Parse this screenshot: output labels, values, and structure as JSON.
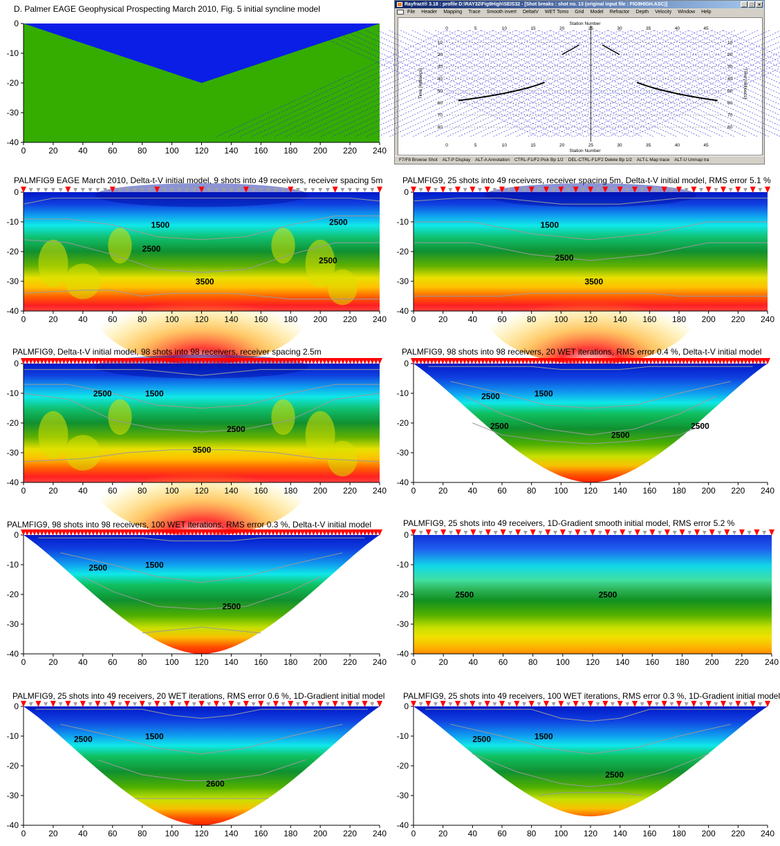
{
  "colors": {
    "water_blue": "#0a1ee6",
    "green_fill": "#34ad00",
    "shot_marker": "#ff0000",
    "receiver_marker": "#a0a0a0",
    "contour": "#9a9a9a",
    "ray_blue": "#2a2ad8"
  },
  "panels": [
    {
      "id": "syncline",
      "title": "D. Palmer EAGE Geophysical Prospecting March 2010, Fig. 5 initial syncline model",
      "kind": "syncline",
      "shots": [],
      "receivers": [],
      "contours": [],
      "labels": []
    },
    {
      "id": "p1",
      "title": "PALMFIG9 EAGE March 2010, Delta-t-V initial model, 9 shots into 49 receivers, receiver spacing 5m",
      "kind": "tomo-full-noisy",
      "shots": [
        0,
        30,
        60,
        90,
        120,
        150,
        180,
        210,
        240
      ],
      "receivers": [
        5,
        10,
        15,
        20,
        25,
        35,
        40,
        45,
        50,
        55,
        65,
        70,
        75,
        80,
        85,
        95,
        100,
        105,
        110,
        115,
        125,
        130,
        135,
        140,
        145,
        155,
        160,
        165,
        170,
        175,
        185,
        190,
        195,
        200,
        205,
        215,
        220,
        225,
        230,
        235
      ],
      "contours": [
        [
          0,
          -4,
          20,
          -2,
          60,
          -2,
          100,
          -2,
          140,
          -2,
          180,
          -2,
          220,
          -2,
          240,
          -3
        ],
        [
          0,
          -9,
          30,
          -9,
          60,
          -11,
          90,
          -15,
          120,
          -16,
          150,
          -15,
          180,
          -11,
          210,
          -8,
          240,
          -8
        ],
        [
          0,
          -16,
          30,
          -17,
          60,
          -21,
          90,
          -26,
          120,
          -27,
          150,
          -26,
          180,
          -21,
          210,
          -17,
          240,
          -17
        ],
        [
          0,
          -34,
          40,
          -33,
          60,
          -33,
          80,
          -35,
          100,
          -34,
          120,
          -34,
          140,
          -34,
          160,
          -35,
          180,
          -36,
          240,
          -36
        ]
      ],
      "labels": [
        {
          "text": "1500",
          "x": 86,
          "y": -12
        },
        {
          "text": "2500",
          "x": 206,
          "y": -11
        },
        {
          "text": "2500",
          "x": 80,
          "y": -20
        },
        {
          "text": "2500",
          "x": 199,
          "y": -24
        },
        {
          "text": "3500",
          "x": 116,
          "y": -31
        }
      ]
    },
    {
      "id": "p2",
      "title": "PALMFIG9, 25 shots into 49 receivers, receiver spacing 5m, Delta-t-V initial model, RMS error 5.1 %",
      "kind": "tomo-full-smooth",
      "shots": [
        0,
        10,
        20,
        30,
        40,
        50,
        60,
        70,
        80,
        90,
        100,
        110,
        120,
        130,
        140,
        150,
        160,
        170,
        180,
        190,
        200,
        210,
        220,
        230,
        240
      ],
      "receivers": [
        5,
        15,
        25,
        35,
        45,
        55,
        65,
        75,
        85,
        95,
        105,
        115,
        125,
        135,
        145,
        155,
        165,
        175,
        185,
        195,
        205,
        215,
        225,
        235
      ],
      "contours": [
        [
          0,
          -3,
          30,
          -2,
          60,
          -2,
          100,
          -4,
          120,
          -4,
          140,
          -4,
          180,
          -2,
          240,
          -2
        ],
        [
          0,
          -10,
          40,
          -10,
          80,
          -14,
          120,
          -16,
          160,
          -14,
          200,
          -10,
          240,
          -10
        ],
        [
          0,
          -17,
          40,
          -17,
          80,
          -21,
          120,
          -23,
          160,
          -21,
          200,
          -17,
          240,
          -17
        ],
        [
          0,
          -35,
          60,
          -35,
          80,
          -34,
          120,
          -34,
          160,
          -34,
          180,
          -35,
          240,
          -35
        ]
      ],
      "labels": [
        {
          "text": "1500",
          "x": 86,
          "y": -12
        },
        {
          "text": "2500",
          "x": 96,
          "y": -23
        },
        {
          "text": "3500",
          "x": 116,
          "y": -31
        }
      ]
    },
    {
      "id": "p3",
      "title": "PALMFIG9, Delta-t-V initial model, 98 shots into 98 receivers, receiver spacing 2.5m",
      "kind": "tomo-full-noisy",
      "shots": "all",
      "receivers": [],
      "contours": [
        [
          0,
          -2,
          40,
          -2,
          80,
          -2,
          100,
          -3,
          120,
          -4,
          140,
          -3,
          160,
          -2,
          200,
          -2,
          240,
          -2
        ],
        [
          0,
          -7,
          30,
          -7,
          60,
          -10,
          90,
          -14,
          120,
          -15,
          150,
          -14,
          180,
          -10,
          210,
          -7,
          240,
          -7
        ],
        [
          0,
          -10,
          30,
          -12,
          60,
          -19,
          90,
          -22,
          120,
          -23,
          150,
          -22,
          180,
          -19,
          210,
          -12,
          240,
          -10
        ],
        [
          0,
          -33,
          40,
          -32,
          70,
          -30,
          100,
          -29,
          120,
          -29,
          140,
          -29,
          170,
          -30,
          200,
          -32,
          240,
          -33
        ]
      ],
      "labels": [
        {
          "text": "1500",
          "x": 82,
          "y": -11
        },
        {
          "text": "2500",
          "x": 47,
          "y": -11
        },
        {
          "text": "2500",
          "x": 137,
          "y": -23
        },
        {
          "text": "3500",
          "x": 114,
          "y": -30
        }
      ]
    },
    {
      "id": "p4",
      "title": "PALMFIG9, 98 shots into 98 receivers, 20 WET iterations, RMS error 0.4 %, Delta-t-V initial model",
      "kind": "tomo-blanked",
      "depth_at_center": -40,
      "shots": "all",
      "receivers": [],
      "contours": [
        [
          10,
          -1,
          40,
          -1,
          80,
          -1,
          100,
          -2,
          120,
          -2,
          140,
          -2,
          160,
          -1,
          200,
          -1,
          230,
          -1
        ],
        [
          25,
          -6,
          60,
          -10,
          90,
          -14,
          120,
          -15,
          150,
          -14,
          180,
          -10,
          215,
          -6
        ],
        [
          35,
          -11,
          60,
          -17,
          90,
          -22,
          120,
          -24,
          150,
          -22,
          180,
          -17,
          205,
          -11
        ],
        [
          40,
          -20,
          60,
          -24,
          90,
          -26,
          120,
          -27,
          150,
          -26,
          180,
          -24,
          200,
          -20
        ]
      ],
      "labels": [
        {
          "text": "1500",
          "x": 82,
          "y": -11
        },
        {
          "text": "2500",
          "x": 46,
          "y": -12
        },
        {
          "text": "2500",
          "x": 52,
          "y": -22
        },
        {
          "text": "2500",
          "x": 134,
          "y": -25
        },
        {
          "text": "2500",
          "x": 188,
          "y": -22
        }
      ]
    },
    {
      "id": "p5",
      "title": "PALMFIG9, 98 shots into 98 receivers, 100 WET iterations, RMS error 0.3 %, Delta-t-V initial model",
      "kind": "tomo-blanked",
      "depth_at_center": -40,
      "shots": "all",
      "receivers": [],
      "contours": [
        [
          10,
          -1,
          40,
          -1,
          80,
          -1,
          100,
          -2,
          120,
          -2,
          140,
          -2,
          160,
          -1,
          200,
          -1,
          230,
          -1
        ],
        [
          25,
          -6,
          60,
          -10,
          90,
          -14,
          120,
          -16,
          150,
          -14,
          180,
          -10,
          215,
          -6
        ],
        [
          40,
          -14,
          60,
          -19,
          90,
          -24,
          120,
          -25,
          150,
          -24,
          180,
          -19,
          200,
          -14
        ],
        [
          80,
          -33,
          100,
          -32,
          120,
          -31,
          140,
          -32,
          160,
          -33
        ]
      ],
      "labels": [
        {
          "text": "1500",
          "x": 82,
          "y": -11
        },
        {
          "text": "2500",
          "x": 44,
          "y": -12
        },
        {
          "text": "2500",
          "x": 134,
          "y": -25
        }
      ]
    },
    {
      "id": "p6",
      "title": "PALMFIG9, 25 shots into 49 receivers, 1D-Gradient smooth initial model, RMS error 5.2 %",
      "kind": "gradient",
      "shots": [
        0,
        10,
        20,
        30,
        40,
        50,
        60,
        70,
        80,
        90,
        100,
        110,
        120,
        130,
        140,
        150,
        160,
        170,
        180,
        190,
        200,
        210,
        220,
        230,
        240
      ],
      "receivers": [
        5,
        15,
        25,
        35,
        45,
        55,
        65,
        75,
        85,
        95,
        105,
        115,
        125,
        135,
        145,
        155,
        165,
        175,
        185,
        195,
        205,
        215,
        225,
        235
      ],
      "contours": [],
      "labels": [
        {
          "text": "2500",
          "x": 28,
          "y": -21
        },
        {
          "text": "2500",
          "x": 124,
          "y": -21
        }
      ]
    },
    {
      "id": "p7",
      "title": "PALMFIG9, 25 shots into 49 receivers, 20 WET iterations, RMS error 0.6 %, 1D-Gradient initial model",
      "kind": "tomo-blanked",
      "depth_at_center": -40,
      "shots": [
        0,
        10,
        20,
        30,
        40,
        50,
        60,
        70,
        80,
        90,
        100,
        110,
        120,
        130,
        140,
        150,
        160,
        170,
        180,
        190,
        200,
        210,
        220,
        230,
        240
      ],
      "receivers": [
        5,
        15,
        25,
        35,
        45,
        55,
        65,
        75,
        85,
        95,
        105,
        115,
        125,
        135,
        145,
        155,
        165,
        175,
        185,
        195,
        205,
        215,
        225,
        235
      ],
      "contours": [
        [
          8,
          -1,
          40,
          -1,
          80,
          -1,
          100,
          -3,
          120,
          -4,
          140,
          -3,
          160,
          -1,
          200,
          -1,
          232,
          -1
        ],
        [
          25,
          -6,
          60,
          -10,
          90,
          -14,
          120,
          -16,
          150,
          -14,
          180,
          -10,
          215,
          -6
        ],
        [
          50,
          -18,
          80,
          -23,
          110,
          -25,
          120,
          -25,
          130,
          -25,
          160,
          -23,
          190,
          -18
        ],
        [
          75,
          -31,
          100,
          -31,
          120,
          -31,
          140,
          -31,
          165,
          -31
        ]
      ],
      "labels": [
        {
          "text": "1500",
          "x": 82,
          "y": -11
        },
        {
          "text": "2500",
          "x": 34,
          "y": -12
        },
        {
          "text": "2600",
          "x": 123,
          "y": -27
        }
      ]
    },
    {
      "id": "p8",
      "title": "PALMFIG9, 25 shots into 49 receivers, 100 WET iterations, RMS error 0.3 %, 1D-Gradient initial model",
      "kind": "tomo-blanked",
      "depth_at_center": -37,
      "shots": [
        0,
        10,
        20,
        30,
        40,
        50,
        60,
        70,
        80,
        90,
        100,
        110,
        120,
        130,
        140,
        150,
        160,
        170,
        180,
        190,
        200,
        210,
        220,
        230,
        240
      ],
      "receivers": [
        5,
        15,
        25,
        35,
        45,
        55,
        65,
        75,
        85,
        95,
        105,
        115,
        125,
        135,
        145,
        155,
        165,
        175,
        185,
        195,
        205,
        215,
        225,
        235
      ],
      "contours": [
        [
          8,
          -1,
          40,
          -1,
          80,
          -1,
          100,
          -4,
          120,
          -5,
          140,
          -4,
          160,
          -1,
          200,
          -1,
          232,
          -1
        ],
        [
          25,
          -6,
          60,
          -10,
          90,
          -14,
          120,
          -16,
          150,
          -14,
          180,
          -10,
          215,
          -6
        ],
        [
          40,
          -16,
          70,
          -22,
          100,
          -26,
          120,
          -27,
          140,
          -26,
          170,
          -22,
          200,
          -16
        ],
        [
          85,
          -30,
          100,
          -29,
          120,
          -29,
          140,
          -29,
          155,
          -30
        ]
      ],
      "labels": [
        {
          "text": "1500",
          "x": 82,
          "y": -11
        },
        {
          "text": "2500",
          "x": 40,
          "y": -12
        },
        {
          "text": "2500",
          "x": 130,
          "y": -24
        }
      ]
    }
  ],
  "rayfract": {
    "title": "Rayfract® 3.18 : profile D:\\RAY32\\Fig9High\\SEIS32 - [Shot breaks : shot no. 13 (original input file : FIG9HIGH.ASC)]",
    "window_buttons": [
      "_",
      "□",
      "×"
    ],
    "menu": [
      "File",
      "Header",
      "Mapping",
      "Trace",
      "Smooth invert",
      "DeltatV",
      "WET Tomo",
      "Grid",
      "Model",
      "Refractor",
      "Depth",
      "Velocity",
      "Window",
      "Help"
    ],
    "x_label": "Station Number",
    "y_label_left": "Time [millisecs]",
    "y_label_right": "Time [millisecs]",
    "x_ticks": [
      0,
      5,
      10,
      15,
      20,
      25,
      30,
      35,
      40,
      45
    ],
    "y_ticks": [
      10,
      20,
      30,
      40,
      50,
      60,
      70,
      80
    ],
    "status": [
      "F7/F8 Browse Shot",
      "ALT-P Display",
      "ALT-A Annotation",
      "CTRL-F1/F2 Pick Bp 1/2",
      "DEL-CTRL-F1/F2 Delete Bp 1/2",
      "ALT-L Map trace",
      "ALT-U Unmap tra"
    ]
  },
  "chart_data": [
    {
      "type": "heatmap",
      "panel": "syncline",
      "x": [
        0,
        240
      ],
      "ylim": [
        -40,
        0
      ],
      "boundary": {
        "x": [
          0,
          120,
          240
        ],
        "y": [
          0,
          -20,
          0
        ]
      },
      "layers": [
        {
          "name": "upper",
          "color": "#0a1ee6"
        },
        {
          "name": "lower",
          "color": "#34ad00"
        }
      ]
    },
    {
      "type": "heatmap",
      "panel": "p1",
      "xlim": [
        0,
        240
      ],
      "ylim": [
        -40,
        0
      ],
      "contours": [
        1500,
        2500,
        3500
      ]
    },
    {
      "type": "heatmap",
      "panel": "p2",
      "xlim": [
        0,
        240
      ],
      "ylim": [
        -40,
        0
      ],
      "contours": [
        1500,
        2500,
        3500
      ]
    },
    {
      "type": "heatmap",
      "panel": "p3",
      "xlim": [
        0,
        240
      ],
      "ylim": [
        -40,
        0
      ],
      "contours": [
        1500,
        2500,
        3500
      ]
    },
    {
      "type": "heatmap",
      "panel": "p4",
      "xlim": [
        0,
        240
      ],
      "ylim": [
        -40,
        0
      ],
      "contours": [
        1500,
        2500
      ]
    },
    {
      "type": "heatmap",
      "panel": "p5",
      "xlim": [
        0,
        240
      ],
      "ylim": [
        -40,
        0
      ],
      "contours": [
        1500,
        2500
      ]
    },
    {
      "type": "heatmap",
      "panel": "p6",
      "xlim": [
        0,
        240
      ],
      "ylim": [
        -40,
        0
      ],
      "contours": [
        2500
      ]
    },
    {
      "type": "heatmap",
      "panel": "p7",
      "xlim": [
        0,
        240
      ],
      "ylim": [
        -40,
        0
      ],
      "contours": [
        1500,
        2500,
        2600
      ]
    },
    {
      "type": "heatmap",
      "panel": "p8",
      "xlim": [
        0,
        240
      ],
      "ylim": [
        -40,
        0
      ],
      "contours": [
        1500,
        2500
      ]
    },
    {
      "type": "scatter",
      "panel": "rayfract-shot-breaks",
      "xlim": [
        0,
        48
      ],
      "ylim": [
        0,
        88
      ],
      "xlabel": "Station Number",
      "ylabel": "Time [millisecs]",
      "shot_station": 25
    }
  ]
}
